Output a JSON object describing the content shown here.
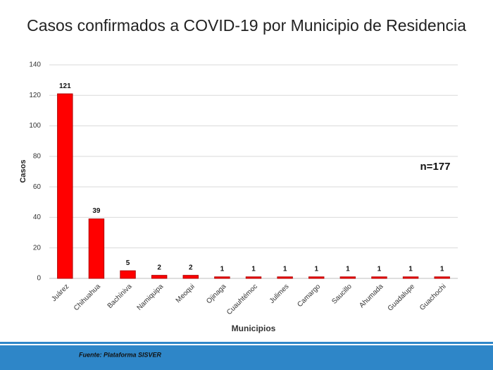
{
  "chart_data": {
    "type": "bar",
    "title": "Casos confirmados a COVID-19 por Municipio de Residencia",
    "categories": [
      "Juárez",
      "Chihuahua",
      "Bachíniva",
      "Namiquipa",
      "Meoqui",
      "Ojinaga",
      "Cuauhtémoc",
      "Julimes",
      "Camargo",
      "Saucillo",
      "Ahumada",
      "Guadalupe",
      "Guachochi"
    ],
    "values": [
      121,
      39,
      5,
      2,
      2,
      1,
      1,
      1,
      1,
      1,
      1,
      1,
      1
    ],
    "color": "#ff0000",
    "ylim": [
      0,
      140
    ],
    "yticks": [
      0,
      20,
      40,
      60,
      80,
      100,
      120,
      140
    ],
    "grid": true,
    "y_label": "Casos",
    "x_label": "Municipios",
    "annotation": "n=177",
    "source": "Fuente: Plataforma SISVER"
  }
}
